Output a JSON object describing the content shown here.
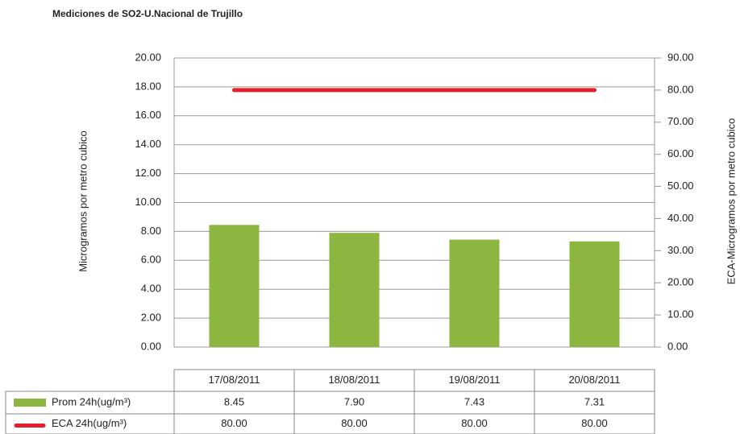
{
  "chart_data": {
    "type": "bar",
    "title": "Mediciones de SO2-U.Nacional de Trujillo",
    "y_label": "Microgramos por metro cubico",
    "y2_label": "ECA-Microgramos por metro cubico",
    "categories": [
      "17/08/2011",
      "18/08/2011",
      "19/08/2011",
      "20/08/2011"
    ],
    "series": [
      {
        "name": "Prom 24h(ug/m³)",
        "type": "bar",
        "color": "#8db640",
        "values": [
          8.45,
          7.9,
          7.43,
          7.31
        ],
        "value_labels": [
          "8.45",
          "7.90",
          "7.43",
          "7.31"
        ]
      },
      {
        "name": "ECA 24h(ug/m³)",
        "type": "line",
        "axis": "y2",
        "color": "#e3202b",
        "values": [
          80,
          80,
          80,
          80
        ],
        "value_labels": [
          "80.00",
          "80.00",
          "80.00",
          "80.00"
        ]
      }
    ],
    "ylim": [
      0,
      20
    ],
    "yticks": [
      {
        "value": 0,
        "label": "0.00"
      },
      {
        "value": 2,
        "label": "2.00"
      },
      {
        "value": 4,
        "label": "4.00"
      },
      {
        "value": 6,
        "label": "6.00"
      },
      {
        "value": 8,
        "label": "8.00"
      },
      {
        "value": 10,
        "label": "10.00"
      },
      {
        "value": 12,
        "label": "12.00"
      },
      {
        "value": 14,
        "label": "14.00"
      },
      {
        "value": 16,
        "label": "16.00"
      },
      {
        "value": 18,
        "label": "18.00"
      },
      {
        "value": 20,
        "label": "20.00"
      }
    ],
    "y2lim": [
      0,
      90
    ],
    "y2ticks": [
      {
        "value": 0,
        "label": "0.00"
      },
      {
        "value": 10,
        "label": "10.00"
      },
      {
        "value": 20,
        "label": "20.00"
      },
      {
        "value": 30,
        "label": "30.00"
      },
      {
        "value": 40,
        "label": "40.00"
      },
      {
        "value": 50,
        "label": "50.00"
      },
      {
        "value": 60,
        "label": "60.00"
      },
      {
        "value": 70,
        "label": "70.00"
      },
      {
        "value": 80,
        "label": "80.00"
      },
      {
        "value": 90,
        "label": "90.00"
      }
    ],
    "grid": true
  }
}
